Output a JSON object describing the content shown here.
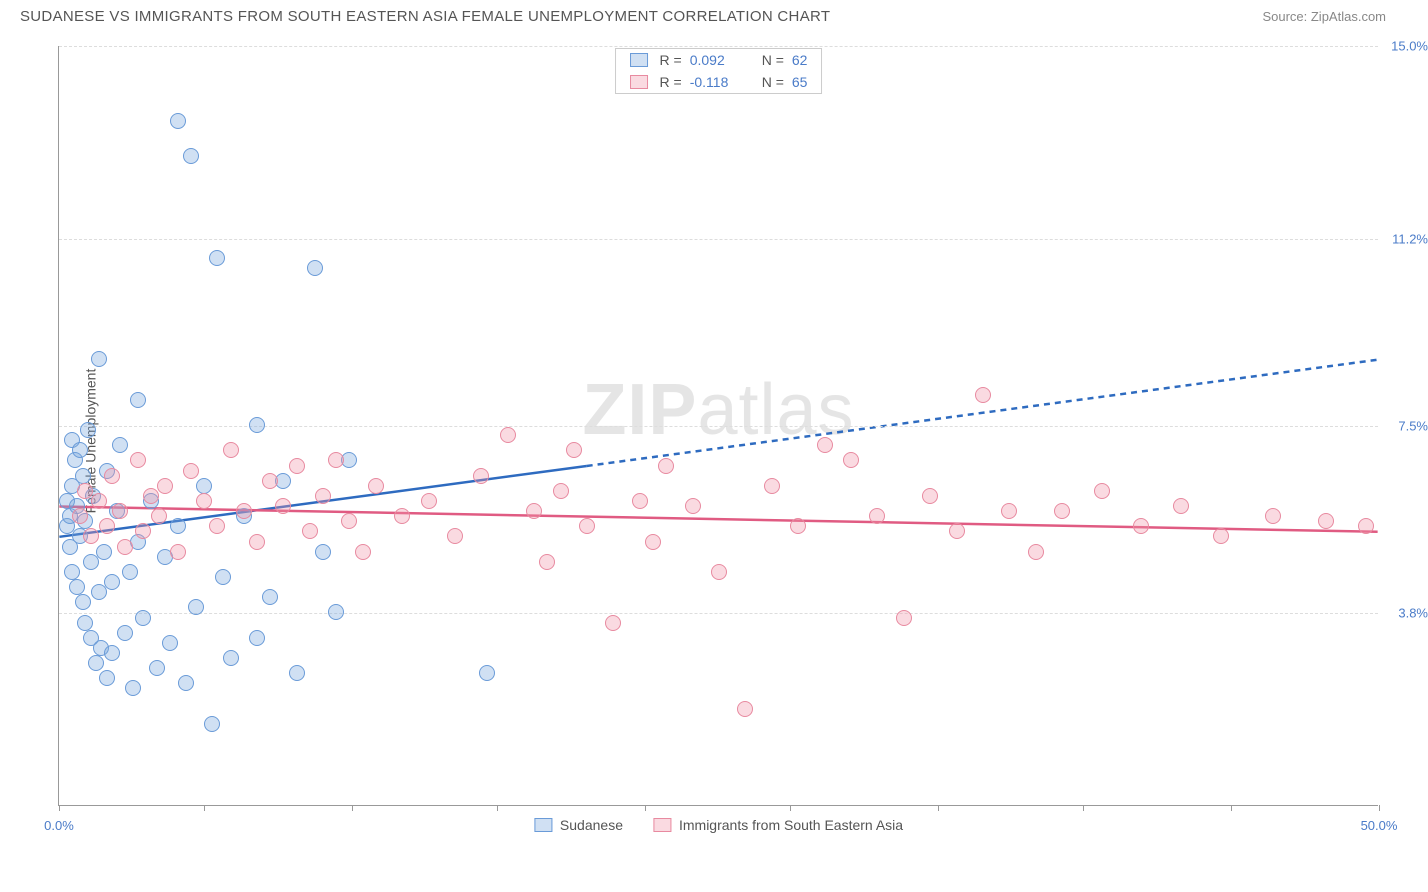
{
  "title": "SUDANESE VS IMMIGRANTS FROM SOUTH EASTERN ASIA FEMALE UNEMPLOYMENT CORRELATION CHART",
  "source": "Source: ZipAtlas.com",
  "ylabel": "Female Unemployment",
  "watermark_bold": "ZIP",
  "watermark_light": "atlas",
  "chart": {
    "type": "scatter",
    "xlim": [
      0,
      50
    ],
    "ylim": [
      0,
      15
    ],
    "xticks": [
      0,
      5.5,
      11.1,
      16.6,
      22.2,
      27.7,
      33.3,
      38.8,
      44.4,
      50
    ],
    "xtick_labels": {
      "0": "0.0%",
      "50": "50.0%"
    },
    "xtick_visible_labels": [
      0,
      50
    ],
    "yticks": [
      3.8,
      7.5,
      11.2,
      15.0
    ],
    "ytick_labels": [
      "3.8%",
      "7.5%",
      "11.2%",
      "15.0%"
    ],
    "ytick_label_color": "#4a7bc8",
    "xtick_label_color": "#4a7bc8",
    "grid_color": "#dddddd",
    "axis_color": "#999999",
    "background_color": "#ffffff",
    "marker_radius": 8,
    "series": [
      {
        "name": "Sudanese",
        "fill": "rgba(120,165,220,0.35)",
        "stroke": "#6a9bd8",
        "trend_color": "#2e6bc0",
        "trend_solid": {
          "x1": 0,
          "y1": 5.3,
          "x2": 20,
          "y2": 6.7
        },
        "trend_dash": {
          "x1": 20,
          "y1": 6.7,
          "x2": 50,
          "y2": 8.8
        },
        "R": "0.092",
        "N": "62",
        "points": [
          [
            0.3,
            5.5
          ],
          [
            0.3,
            6.0
          ],
          [
            0.4,
            5.1
          ],
          [
            0.4,
            5.7
          ],
          [
            0.5,
            6.3
          ],
          [
            0.5,
            4.6
          ],
          [
            0.5,
            7.2
          ],
          [
            0.6,
            6.8
          ],
          [
            0.7,
            4.3
          ],
          [
            0.7,
            5.9
          ],
          [
            0.8,
            5.3
          ],
          [
            0.8,
            7.0
          ],
          [
            0.9,
            4.0
          ],
          [
            0.9,
            6.5
          ],
          [
            1.0,
            3.6
          ],
          [
            1.0,
            5.6
          ],
          [
            1.1,
            7.4
          ],
          [
            1.2,
            4.8
          ],
          [
            1.2,
            3.3
          ],
          [
            1.3,
            6.1
          ],
          [
            1.4,
            2.8
          ],
          [
            1.5,
            4.2
          ],
          [
            1.5,
            8.8
          ],
          [
            1.6,
            3.1
          ],
          [
            1.7,
            5.0
          ],
          [
            1.8,
            6.6
          ],
          [
            1.8,
            2.5
          ],
          [
            2.0,
            4.4
          ],
          [
            2.0,
            3.0
          ],
          [
            2.2,
            5.8
          ],
          [
            2.3,
            7.1
          ],
          [
            2.5,
            3.4
          ],
          [
            2.7,
            4.6
          ],
          [
            2.8,
            2.3
          ],
          [
            3.0,
            5.2
          ],
          [
            3.0,
            8.0
          ],
          [
            3.2,
            3.7
          ],
          [
            3.5,
            6.0
          ],
          [
            3.7,
            2.7
          ],
          [
            4.0,
            4.9
          ],
          [
            4.2,
            3.2
          ],
          [
            4.5,
            13.5
          ],
          [
            4.5,
            5.5
          ],
          [
            4.8,
            2.4
          ],
          [
            5.0,
            12.8
          ],
          [
            5.2,
            3.9
          ],
          [
            5.5,
            6.3
          ],
          [
            5.8,
            1.6
          ],
          [
            6.0,
            10.8
          ],
          [
            6.2,
            4.5
          ],
          [
            6.5,
            2.9
          ],
          [
            7.0,
            5.7
          ],
          [
            7.5,
            7.5
          ],
          [
            7.5,
            3.3
          ],
          [
            8.0,
            4.1
          ],
          [
            8.5,
            6.4
          ],
          [
            9.0,
            2.6
          ],
          [
            9.7,
            10.6
          ],
          [
            10.0,
            5.0
          ],
          [
            10.5,
            3.8
          ],
          [
            11.0,
            6.8
          ],
          [
            16.2,
            2.6
          ]
        ]
      },
      {
        "name": "Immigrants from South Eastern Asia",
        "fill": "rgba(240,150,170,0.35)",
        "stroke": "#e88aa0",
        "trend_color": "#e05b82",
        "trend_solid": {
          "x1": 0,
          "y1": 5.9,
          "x2": 50,
          "y2": 5.4
        },
        "trend_dash": null,
        "R": "-0.118",
        "N": "65",
        "points": [
          [
            0.8,
            5.7
          ],
          [
            1.0,
            6.2
          ],
          [
            1.2,
            5.3
          ],
          [
            1.5,
            6.0
          ],
          [
            1.8,
            5.5
          ],
          [
            2.0,
            6.5
          ],
          [
            2.3,
            5.8
          ],
          [
            2.5,
            5.1
          ],
          [
            3.0,
            6.8
          ],
          [
            3.2,
            5.4
          ],
          [
            3.5,
            6.1
          ],
          [
            3.8,
            5.7
          ],
          [
            4.0,
            6.3
          ],
          [
            4.5,
            5.0
          ],
          [
            5.0,
            6.6
          ],
          [
            5.5,
            6.0
          ],
          [
            6.0,
            5.5
          ],
          [
            6.5,
            7.0
          ],
          [
            7.0,
            5.8
          ],
          [
            7.5,
            5.2
          ],
          [
            8.0,
            6.4
          ],
          [
            8.5,
            5.9
          ],
          [
            9.0,
            6.7
          ],
          [
            9.5,
            5.4
          ],
          [
            10.0,
            6.1
          ],
          [
            10.5,
            6.8
          ],
          [
            11.0,
            5.6
          ],
          [
            11.5,
            5.0
          ],
          [
            12.0,
            6.3
          ],
          [
            13.0,
            5.7
          ],
          [
            14.0,
            6.0
          ],
          [
            15.0,
            5.3
          ],
          [
            16.0,
            6.5
          ],
          [
            17.0,
            7.3
          ],
          [
            18.0,
            5.8
          ],
          [
            18.5,
            4.8
          ],
          [
            19.0,
            6.2
          ],
          [
            19.5,
            7.0
          ],
          [
            20.0,
            5.5
          ],
          [
            21.0,
            3.6
          ],
          [
            22.0,
            6.0
          ],
          [
            22.5,
            5.2
          ],
          [
            23.0,
            6.7
          ],
          [
            24.0,
            5.9
          ],
          [
            25.0,
            4.6
          ],
          [
            26.0,
            1.9
          ],
          [
            27.0,
            6.3
          ],
          [
            28.0,
            5.5
          ],
          [
            29.0,
            7.1
          ],
          [
            30.0,
            6.8
          ],
          [
            31.0,
            5.7
          ],
          [
            32.0,
            3.7
          ],
          [
            33.0,
            6.1
          ],
          [
            34.0,
            5.4
          ],
          [
            35.0,
            8.1
          ],
          [
            36.0,
            5.8
          ],
          [
            37.0,
            5.0
          ],
          [
            38.0,
            5.8
          ],
          [
            39.5,
            6.2
          ],
          [
            41.0,
            5.5
          ],
          [
            42.5,
            5.9
          ],
          [
            44.0,
            5.3
          ],
          [
            46.0,
            5.7
          ],
          [
            48.0,
            5.6
          ],
          [
            49.5,
            5.5
          ]
        ]
      }
    ]
  },
  "legend_top_rlabel": "R =",
  "legend_top_nlabel": "N =",
  "legend_value_color": "#4a7bc8"
}
